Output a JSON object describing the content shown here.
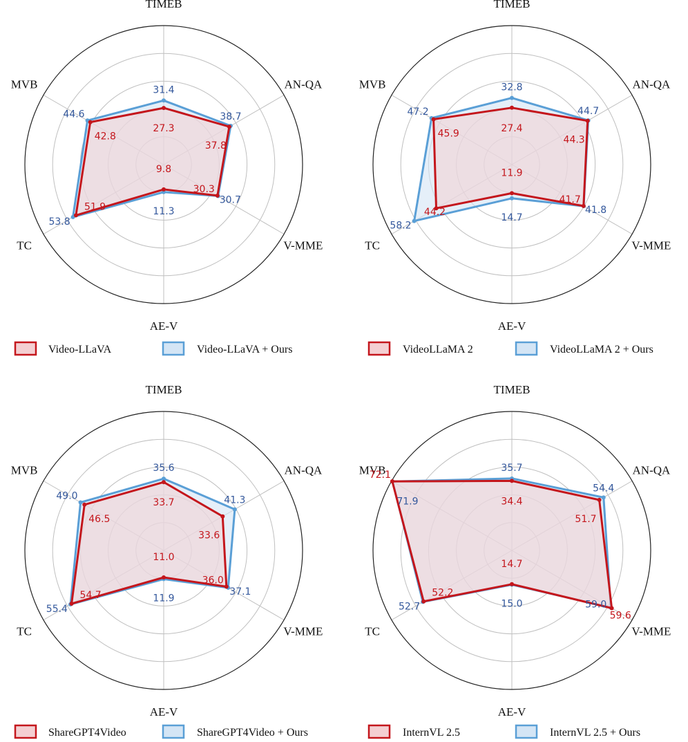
{
  "colors": {
    "base_stroke": "#c4161c",
    "base_fill": "#f4cfd2",
    "ours_stroke": "#5a9fd6",
    "ours_fill": "#d4e5f5",
    "base_text": "#c4161c",
    "ours_text": "#34589c",
    "grid": "#bfbfbf",
    "outer": "#222222"
  },
  "chart_data": [
    {
      "type": "radar",
      "axes": [
        "TIMEB",
        "AN-QA",
        "V-MME",
        "AE-V",
        "TC",
        "MVB"
      ],
      "series": [
        {
          "name": "Video-LLaVA",
          "values": [
            27.3,
            37.8,
            30.3,
            9.8,
            51.9,
            42.8
          ]
        },
        {
          "name": "Video-LLaVA + Ours",
          "values": [
            31.4,
            38.7,
            30.7,
            11.3,
            53.8,
            44.6
          ]
        }
      ]
    },
    {
      "type": "radar",
      "axes": [
        "TIMEB",
        "AN-QA",
        "V-MME",
        "AE-V",
        "TC",
        "MVB"
      ],
      "series": [
        {
          "name": "VideoLLaMA 2",
          "values": [
            27.4,
            44.3,
            41.7,
            11.9,
            44.2,
            45.9
          ]
        },
        {
          "name": "VideoLLaMA 2 + Ours",
          "values": [
            32.8,
            44.7,
            41.8,
            14.7,
            58.2,
            47.2
          ]
        }
      ]
    },
    {
      "type": "radar",
      "axes": [
        "TIMEB",
        "AN-QA",
        "V-MME",
        "AE-V",
        "TC",
        "MVB"
      ],
      "series": [
        {
          "name": "ShareGPT4Video",
          "values": [
            33.7,
            33.6,
            36.0,
            11.0,
            54.7,
            46.5
          ]
        },
        {
          "name": "ShareGPT4Video + Ours",
          "values": [
            35.6,
            41.3,
            37.1,
            11.9,
            55.4,
            49.0
          ]
        }
      ]
    },
    {
      "type": "radar",
      "axes": [
        "TIMEB",
        "AN-QA",
        "V-MME",
        "AE-V",
        "TC",
        "MVB"
      ],
      "series": [
        {
          "name": "InternVL 2.5",
          "values": [
            34.4,
            51.7,
            59.6,
            14.7,
            52.2,
            72.1
          ]
        },
        {
          "name": "InternVL 2.5 + Ours",
          "values": [
            35.7,
            54.4,
            59.0,
            15.0,
            52.7,
            71.9
          ]
        }
      ]
    }
  ]
}
